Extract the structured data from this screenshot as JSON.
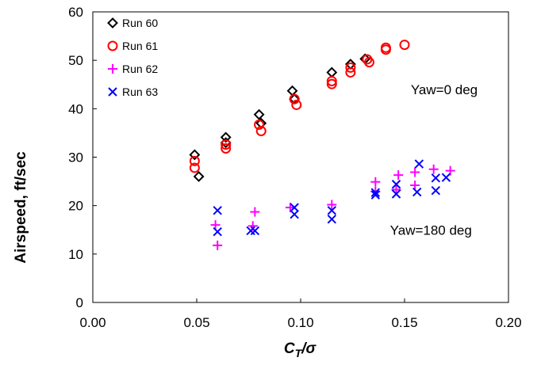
{
  "chart_data": {
    "type": "scatter",
    "xlabel_main": "C",
    "xlabel_sub": "T",
    "xlabel_tail": "/σ",
    "ylabel": "Airspeed, ft/sec",
    "xlim": [
      0.0,
      0.2
    ],
    "ylim": [
      0,
      60
    ],
    "x_ticks": [
      0.0,
      0.05,
      0.1,
      0.15,
      0.2
    ],
    "x_tick_labels": [
      "0.00",
      "0.05",
      "0.10",
      "0.15",
      "0.20"
    ],
    "y_ticks": [
      0,
      10,
      20,
      30,
      40,
      50,
      60
    ],
    "y_tick_labels": [
      "0",
      "10",
      "20",
      "30",
      "40",
      "50",
      "60"
    ],
    "grid": "none",
    "legend_position": "top-left",
    "annotations": [
      {
        "text": "Yaw=0 deg",
        "x": 0.153,
        "y": 44
      },
      {
        "text": "Yaw=180 deg",
        "x": 0.143,
        "y": 15
      }
    ],
    "series": [
      {
        "name": "Run 60",
        "marker": "diamond",
        "color": "#000000",
        "points": [
          [
            0.049,
            30.5
          ],
          [
            0.051,
            26.0
          ],
          [
            0.064,
            34.1
          ],
          [
            0.064,
            33.0
          ],
          [
            0.08,
            38.8
          ],
          [
            0.081,
            37.0
          ],
          [
            0.096,
            43.7
          ],
          [
            0.097,
            42.0
          ],
          [
            0.115,
            47.5
          ],
          [
            0.124,
            49.2
          ],
          [
            0.131,
            50.3
          ]
        ]
      },
      {
        "name": "Run 61",
        "marker": "circle",
        "color": "#ff0000",
        "points": [
          [
            0.049,
            29.2
          ],
          [
            0.049,
            27.8
          ],
          [
            0.064,
            32.6
          ],
          [
            0.064,
            31.8
          ],
          [
            0.08,
            36.7
          ],
          [
            0.081,
            35.4
          ],
          [
            0.097,
            42.0
          ],
          [
            0.098,
            40.8
          ],
          [
            0.115,
            45.7
          ],
          [
            0.115,
            45.1
          ],
          [
            0.124,
            48.5
          ],
          [
            0.124,
            47.5
          ],
          [
            0.132,
            50.2
          ],
          [
            0.133,
            49.6
          ],
          [
            0.141,
            52.6
          ],
          [
            0.141,
            52.2
          ],
          [
            0.15,
            53.2
          ]
        ]
      },
      {
        "name": "Run 62",
        "marker": "plus",
        "color": "#ff00ff",
        "points": [
          [
            0.059,
            16.0
          ],
          [
            0.06,
            11.8
          ],
          [
            0.077,
            15.8
          ],
          [
            0.078,
            18.7
          ],
          [
            0.095,
            19.6
          ],
          [
            0.115,
            20.2
          ],
          [
            0.136,
            24.9
          ],
          [
            0.136,
            22.9
          ],
          [
            0.147,
            26.3
          ],
          [
            0.146,
            23.3
          ],
          [
            0.155,
            26.9
          ],
          [
            0.155,
            24.2
          ],
          [
            0.164,
            27.5
          ],
          [
            0.172,
            27.2
          ]
        ]
      },
      {
        "name": "Run 63",
        "marker": "x",
        "color": "#0000ff",
        "points": [
          [
            0.06,
            19.0
          ],
          [
            0.06,
            14.6
          ],
          [
            0.076,
            14.8
          ],
          [
            0.078,
            14.8
          ],
          [
            0.097,
            19.6
          ],
          [
            0.097,
            18.2
          ],
          [
            0.115,
            19.0
          ],
          [
            0.115,
            17.2
          ],
          [
            0.136,
            22.7
          ],
          [
            0.136,
            22.2
          ],
          [
            0.146,
            24.4
          ],
          [
            0.146,
            22.4
          ],
          [
            0.157,
            28.6
          ],
          [
            0.156,
            22.8
          ],
          [
            0.165,
            25.7
          ],
          [
            0.165,
            23.1
          ],
          [
            0.17,
            25.8
          ]
        ]
      }
    ]
  }
}
